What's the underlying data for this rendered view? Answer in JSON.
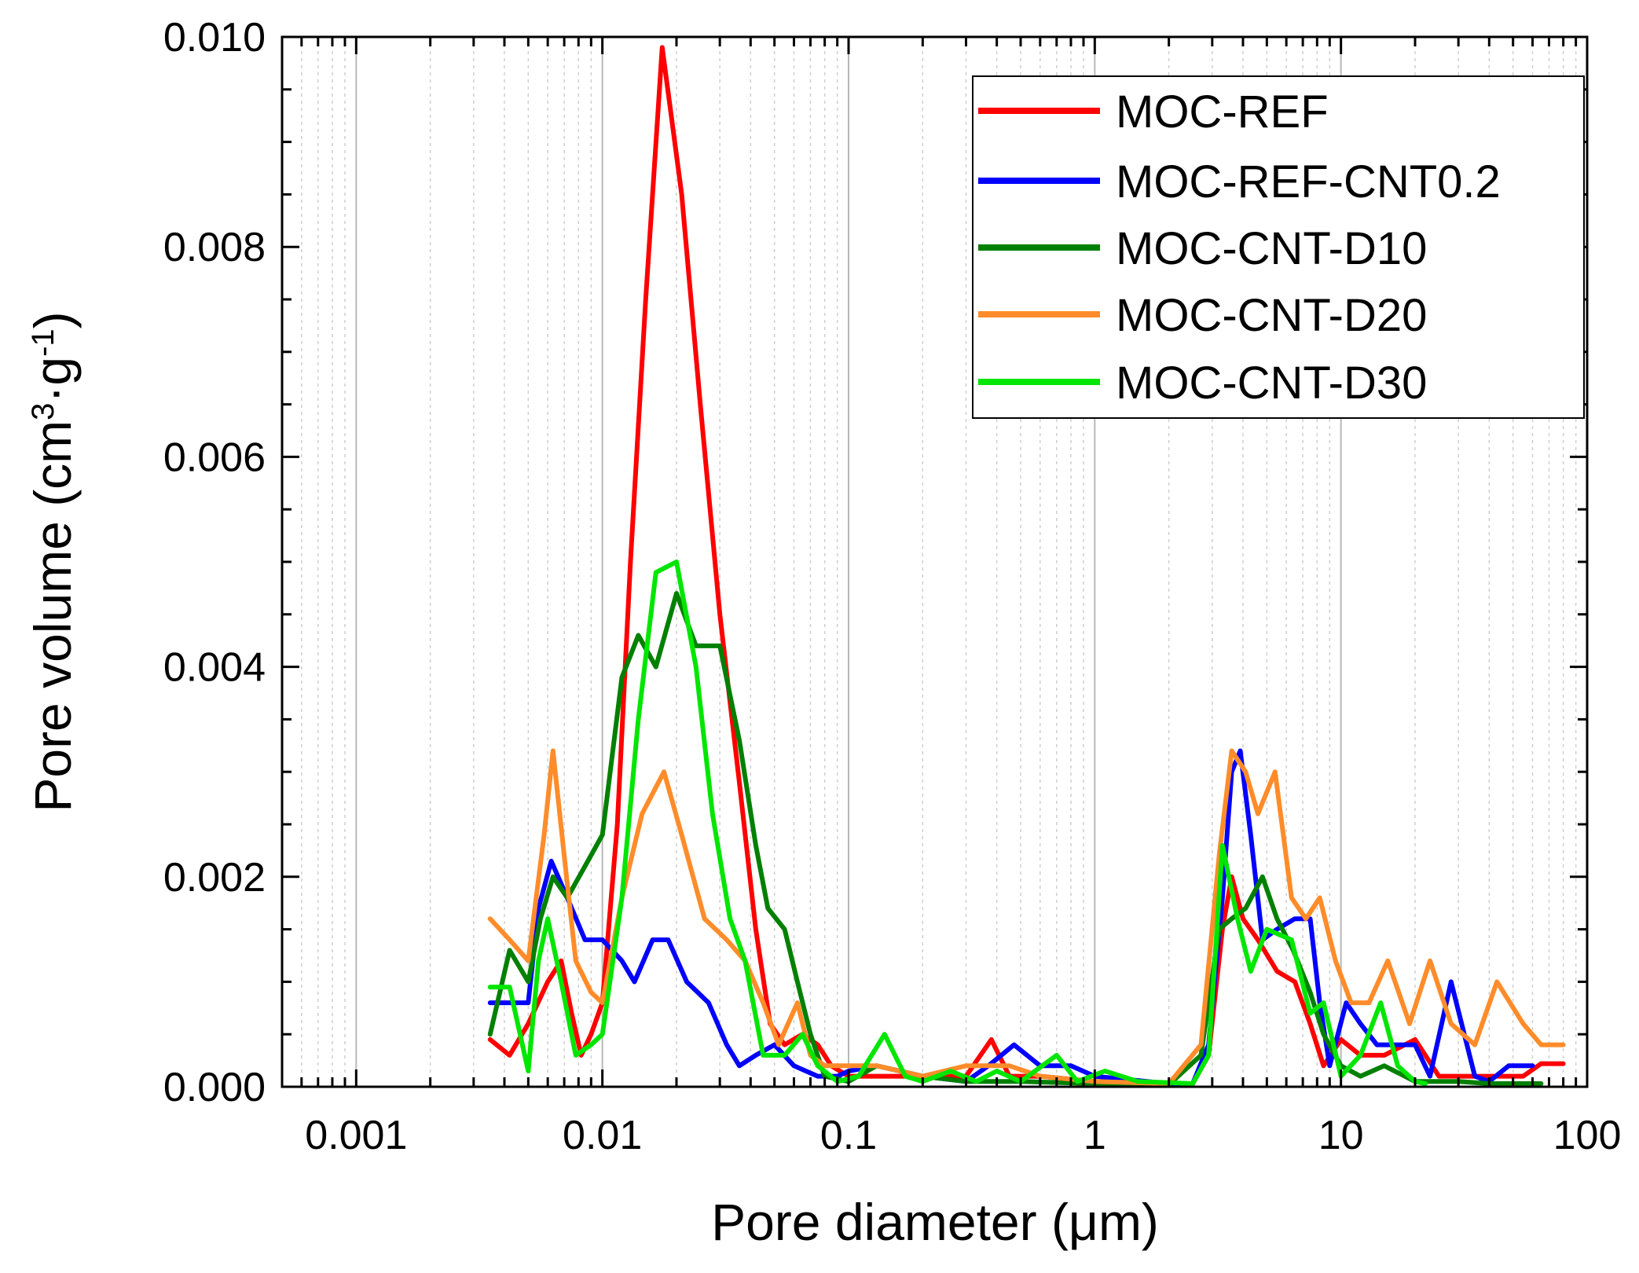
{
  "chart_data": {
    "type": "line",
    "title": "",
    "xlabel": "Pore diameter (μm)",
    "ylabel": "Pore volume (cm³·g⁻¹)",
    "ylabel_parts": [
      "Pore volume (cm",
      "3",
      "·g",
      "-1",
      ")"
    ],
    "xscale": "log",
    "xlim": [
      0.0005,
      100
    ],
    "ylim": [
      0,
      0.01
    ],
    "grid": "vertical",
    "legend_position": "top-right",
    "x_ticks": [
      {
        "value": 0.001,
        "label": "0.001"
      },
      {
        "value": 0.01,
        "label": "0.01"
      },
      {
        "value": 0.1,
        "label": "0.1"
      },
      {
        "value": 1,
        "label": "1"
      },
      {
        "value": 10,
        "label": "10"
      },
      {
        "value": 100,
        "label": "100"
      }
    ],
    "y_ticks": [
      {
        "value": 0,
        "label": "0.000"
      },
      {
        "value": 0.002,
        "label": "0.002"
      },
      {
        "value": 0.004,
        "label": "0.004"
      },
      {
        "value": 0.006,
        "label": "0.006"
      },
      {
        "value": 0.008,
        "label": "0.008"
      },
      {
        "value": 0.01,
        "label": "0.010"
      }
    ],
    "series": [
      {
        "name": "MOC-REF",
        "color": "#ff0000",
        "points": [
          [
            0.0035,
            0.00045
          ],
          [
            0.0042,
            0.0003
          ],
          [
            0.005,
            0.0006
          ],
          [
            0.006,
            0.001
          ],
          [
            0.0068,
            0.0012
          ],
          [
            0.0075,
            0.0007
          ],
          [
            0.0082,
            0.0003
          ],
          [
            0.009,
            0.0005
          ],
          [
            0.01,
            0.0008
          ],
          [
            0.0115,
            0.0025
          ],
          [
            0.013,
            0.005
          ],
          [
            0.015,
            0.0075
          ],
          [
            0.0175,
            0.0099
          ],
          [
            0.021,
            0.0085
          ],
          [
            0.025,
            0.0065
          ],
          [
            0.03,
            0.0045
          ],
          [
            0.036,
            0.0029
          ],
          [
            0.042,
            0.0015
          ],
          [
            0.048,
            0.0006
          ],
          [
            0.055,
            0.0004
          ],
          [
            0.065,
            0.0005
          ],
          [
            0.075,
            0.0004
          ],
          [
            0.085,
            0.0002
          ],
          [
            0.1,
            0.0001
          ],
          [
            0.15,
            0.0001
          ],
          [
            0.2,
            0.0001
          ],
          [
            0.3,
            0.0001
          ],
          [
            0.38,
            0.00045
          ],
          [
            0.45,
            0.0001
          ],
          [
            0.6,
            0.0001
          ],
          [
            1,
            5e-05
          ],
          [
            2,
            3e-05
          ],
          [
            2.5,
            3e-05
          ],
          [
            2.9,
            0.0003
          ],
          [
            3.3,
            0.0015
          ],
          [
            3.6,
            0.002
          ],
          [
            4,
            0.0016
          ],
          [
            4.6,
            0.0014
          ],
          [
            5.5,
            0.0011
          ],
          [
            6.5,
            0.001
          ],
          [
            7.5,
            0.0006
          ],
          [
            8.5,
            0.0002
          ],
          [
            10,
            0.00045
          ],
          [
            12,
            0.0003
          ],
          [
            15,
            0.0003
          ],
          [
            20,
            0.00045
          ],
          [
            25,
            0.0001
          ],
          [
            30,
            0.0001
          ],
          [
            40,
            0.0001
          ],
          [
            55,
            0.0001
          ],
          [
            65,
            0.00022
          ],
          [
            80,
            0.00022
          ]
        ]
      },
      {
        "name": "MOC-REF-CNT0.2",
        "color": "#0000ff",
        "points": [
          [
            0.0035,
            0.0008
          ],
          [
            0.0042,
            0.0008
          ],
          [
            0.005,
            0.0008
          ],
          [
            0.0055,
            0.0017
          ],
          [
            0.0062,
            0.00215
          ],
          [
            0.0072,
            0.0018
          ],
          [
            0.0085,
            0.0014
          ],
          [
            0.01,
            0.0014
          ],
          [
            0.012,
            0.0012
          ],
          [
            0.0135,
            0.001
          ],
          [
            0.016,
            0.0014
          ],
          [
            0.0185,
            0.0014
          ],
          [
            0.022,
            0.001
          ],
          [
            0.027,
            0.0008
          ],
          [
            0.032,
            0.0004
          ],
          [
            0.036,
            0.0002
          ],
          [
            0.042,
            0.0003
          ],
          [
            0.05,
            0.0004
          ],
          [
            0.06,
            0.0002
          ],
          [
            0.075,
            0.0001
          ],
          [
            0.09,
            0.0001
          ],
          [
            0.1,
            0.00015
          ],
          [
            0.13,
            0.0002
          ],
          [
            0.2,
            0.0001
          ],
          [
            0.3,
            5e-05
          ],
          [
            0.37,
            0.0002
          ],
          [
            0.47,
            0.0004
          ],
          [
            0.6,
            0.0002
          ],
          [
            0.8,
            0.0002
          ],
          [
            1,
            0.0001
          ],
          [
            2,
            3e-05
          ],
          [
            2.5,
            3e-05
          ],
          [
            2.9,
            0.0004
          ],
          [
            3.3,
            0.0018
          ],
          [
            3.6,
            0.003
          ],
          [
            3.9,
            0.0032
          ],
          [
            4.3,
            0.0024
          ],
          [
            4.8,
            0.0014
          ],
          [
            5.5,
            0.0015
          ],
          [
            6.5,
            0.0016
          ],
          [
            7.5,
            0.0016
          ],
          [
            8.2,
            0.0008
          ],
          [
            9,
            0.0002
          ],
          [
            10.5,
            0.0008
          ],
          [
            12,
            0.0006
          ],
          [
            14,
            0.0004
          ],
          [
            17,
            0.0004
          ],
          [
            20,
            0.0004
          ],
          [
            23,
            0.0001
          ],
          [
            28,
            0.001
          ],
          [
            35,
            0.0001
          ],
          [
            40,
            5e-05
          ],
          [
            48,
            0.0002
          ],
          [
            60,
            0.0002
          ]
        ]
      },
      {
        "name": "MOC-CNT-D10",
        "color": "#008000",
        "points": [
          [
            0.0035,
            0.0005
          ],
          [
            0.0042,
            0.0013
          ],
          [
            0.005,
            0.001
          ],
          [
            0.0056,
            0.0016
          ],
          [
            0.0063,
            0.002
          ],
          [
            0.0072,
            0.0018
          ],
          [
            0.0085,
            0.0021
          ],
          [
            0.01,
            0.0024
          ],
          [
            0.012,
            0.0039
          ],
          [
            0.014,
            0.0043
          ],
          [
            0.0165,
            0.004
          ],
          [
            0.02,
            0.0047
          ],
          [
            0.024,
            0.0042
          ],
          [
            0.03,
            0.0042
          ],
          [
            0.036,
            0.0033
          ],
          [
            0.042,
            0.0023
          ],
          [
            0.047,
            0.0017
          ],
          [
            0.055,
            0.0015
          ],
          [
            0.062,
            0.001
          ],
          [
            0.07,
            0.0005
          ],
          [
            0.08,
            0.0001
          ],
          [
            0.1,
            5e-05
          ],
          [
            0.13,
            0.0002
          ],
          [
            0.2,
            0.0001
          ],
          [
            0.3,
            5e-05
          ],
          [
            0.5,
            5e-05
          ],
          [
            1,
            3e-05
          ],
          [
            2,
            2e-05
          ],
          [
            2.7,
            0.0003
          ],
          [
            3.2,
            0.0015
          ],
          [
            3.6,
            0.0016
          ],
          [
            4.1,
            0.0017
          ],
          [
            4.8,
            0.002
          ],
          [
            5.5,
            0.0016
          ],
          [
            6.4,
            0.0013
          ],
          [
            7.5,
            0.0009
          ],
          [
            8.5,
            0.0005
          ],
          [
            10,
            0.0002
          ],
          [
            12,
            0.0001
          ],
          [
            15,
            0.0002
          ],
          [
            20,
            5e-05
          ],
          [
            30,
            5e-05
          ],
          [
            40,
            3e-05
          ],
          [
            65,
            3e-05
          ]
        ]
      },
      {
        "name": "MOC-CNT-D20",
        "color": "#ff8c2a",
        "points": [
          [
            0.0035,
            0.0016
          ],
          [
            0.0042,
            0.0014
          ],
          [
            0.005,
            0.0012
          ],
          [
            0.0058,
            0.0024
          ],
          [
            0.0063,
            0.0032
          ],
          [
            0.007,
            0.0022
          ],
          [
            0.0078,
            0.0012
          ],
          [
            0.009,
            0.0009
          ],
          [
            0.01,
            0.0008
          ],
          [
            0.012,
            0.0018
          ],
          [
            0.0145,
            0.0026
          ],
          [
            0.0178,
            0.003
          ],
          [
            0.021,
            0.0024
          ],
          [
            0.026,
            0.0016
          ],
          [
            0.032,
            0.0014
          ],
          [
            0.038,
            0.0012
          ],
          [
            0.045,
            0.0008
          ],
          [
            0.052,
            0.0004
          ],
          [
            0.062,
            0.0008
          ],
          [
            0.07,
            0.0003
          ],
          [
            0.08,
            0.0002
          ],
          [
            0.1,
            0.0002
          ],
          [
            0.13,
            0.0002
          ],
          [
            0.2,
            0.0001
          ],
          [
            0.3,
            0.0002
          ],
          [
            0.45,
            0.0002
          ],
          [
            0.6,
            0.0001
          ],
          [
            1,
            5e-05
          ],
          [
            2,
            3e-05
          ],
          [
            2.7,
            0.0004
          ],
          [
            3.2,
            0.0022
          ],
          [
            3.6,
            0.0032
          ],
          [
            4.1,
            0.003
          ],
          [
            4.6,
            0.0026
          ],
          [
            5.4,
            0.003
          ],
          [
            6.3,
            0.0018
          ],
          [
            7.2,
            0.0016
          ],
          [
            8.2,
            0.0018
          ],
          [
            9.5,
            0.0012
          ],
          [
            11,
            0.0008
          ],
          [
            13,
            0.0008
          ],
          [
            15.5,
            0.0012
          ],
          [
            19,
            0.0006
          ],
          [
            23,
            0.0012
          ],
          [
            28,
            0.0006
          ],
          [
            35,
            0.0004
          ],
          [
            43,
            0.001
          ],
          [
            55,
            0.0006
          ],
          [
            65,
            0.0004
          ],
          [
            80,
            0.0004
          ]
        ]
      },
      {
        "name": "MOC-CNT-D30",
        "color": "#00e600",
        "points": [
          [
            0.0035,
            0.00095
          ],
          [
            0.0042,
            0.00095
          ],
          [
            0.005,
            0.00015
          ],
          [
            0.0055,
            0.0012
          ],
          [
            0.006,
            0.0016
          ],
          [
            0.0068,
            0.001
          ],
          [
            0.0078,
            0.0003
          ],
          [
            0.009,
            0.0004
          ],
          [
            0.01,
            0.0005
          ],
          [
            0.012,
            0.0018
          ],
          [
            0.014,
            0.0035
          ],
          [
            0.0165,
            0.0049
          ],
          [
            0.02,
            0.005
          ],
          [
            0.024,
            0.004
          ],
          [
            0.028,
            0.0026
          ],
          [
            0.033,
            0.0016
          ],
          [
            0.038,
            0.0012
          ],
          [
            0.045,
            0.0003
          ],
          [
            0.055,
            0.0003
          ],
          [
            0.065,
            0.0005
          ],
          [
            0.075,
            0.0002
          ],
          [
            0.09,
            5e-05
          ],
          [
            0.11,
            0.0001
          ],
          [
            0.14,
            0.0005
          ],
          [
            0.17,
            0.0001
          ],
          [
            0.2,
            5e-05
          ],
          [
            0.26,
            0.00015
          ],
          [
            0.33,
            5e-05
          ],
          [
            0.4,
            0.00015
          ],
          [
            0.5,
            5e-05
          ],
          [
            0.7,
            0.0003
          ],
          [
            0.85,
            5e-05
          ],
          [
            1.1,
            0.00015
          ],
          [
            1.5,
            5e-05
          ],
          [
            2.5,
            3e-05
          ],
          [
            2.9,
            0.0003
          ],
          [
            3.3,
            0.0023
          ],
          [
            3.8,
            0.0016
          ],
          [
            4.3,
            0.0011
          ],
          [
            5,
            0.0015
          ],
          [
            6.3,
            0.0014
          ],
          [
            7.5,
            0.0007
          ],
          [
            8.5,
            0.0008
          ],
          [
            10,
            0.0001
          ],
          [
            12,
            0.0003
          ],
          [
            14.5,
            0.0008
          ],
          [
            17,
            0.0002
          ],
          [
            20,
            5e-05
          ],
          [
            22,
            3e-05
          ]
        ]
      }
    ]
  }
}
